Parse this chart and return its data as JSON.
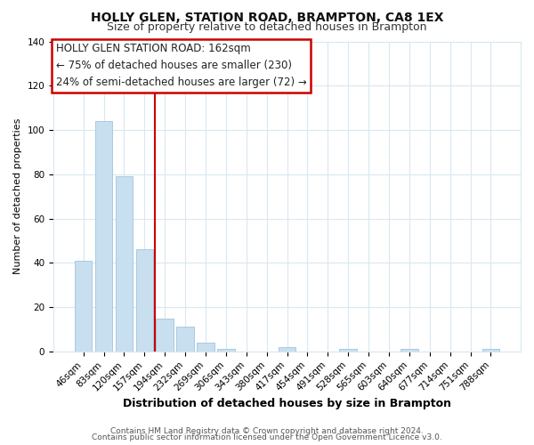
{
  "title": "HOLLY GLEN, STATION ROAD, BRAMPTON, CA8 1EX",
  "subtitle": "Size of property relative to detached houses in Brampton",
  "xlabel": "Distribution of detached houses by size in Brampton",
  "ylabel": "Number of detached properties",
  "bar_labels": [
    "46sqm",
    "83sqm",
    "120sqm",
    "157sqm",
    "194sqm",
    "232sqm",
    "269sqm",
    "306sqm",
    "343sqm",
    "380sqm",
    "417sqm",
    "454sqm",
    "491sqm",
    "528sqm",
    "565sqm",
    "603sqm",
    "640sqm",
    "677sqm",
    "714sqm",
    "751sqm",
    "788sqm"
  ],
  "bar_values": [
    41,
    104,
    79,
    46,
    15,
    11,
    4,
    1,
    0,
    0,
    2,
    0,
    0,
    1,
    0,
    0,
    1,
    0,
    0,
    0,
    1
  ],
  "bar_color": "#c8dff0",
  "bar_edge_color": "#a0c4e0",
  "annotation_text_line1": "HOLLY GLEN STATION ROAD: 162sqm",
  "annotation_text_line2": "← 75% of detached houses are smaller (230)",
  "annotation_text_line3": "24% of semi-detached houses are larger (72) →",
  "annotation_box_color": "#ffffff",
  "annotation_box_edge_color": "#cc0000",
  "vertical_line_x": 3,
  "vertical_line_color": "#cc0000",
  "ylim": [
    0,
    140
  ],
  "yticks": [
    0,
    20,
    40,
    60,
    80,
    100,
    120,
    140
  ],
  "footer_line1": "Contains HM Land Registry data © Crown copyright and database right 2024.",
  "footer_line2": "Contains public sector information licensed under the Open Government Licence v3.0.",
  "bg_color": "#ffffff",
  "grid_color": "#d8e8f0",
  "title_fontsize": 10,
  "subtitle_fontsize": 9,
  "xlabel_fontsize": 9,
  "ylabel_fontsize": 8,
  "tick_fontsize": 7.5,
  "footer_fontsize": 6.5,
  "annotation_fontsize": 8.5
}
